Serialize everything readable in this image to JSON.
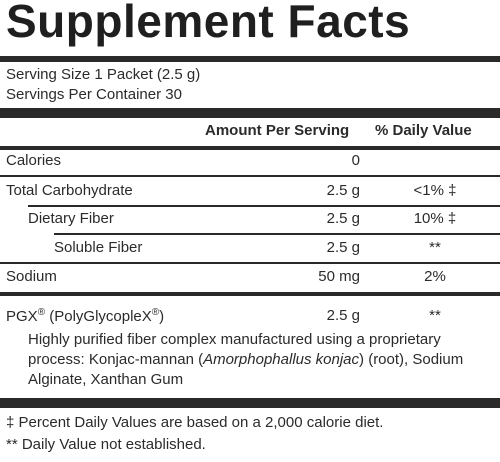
{
  "title": "Supplement Facts",
  "serving_size": "Serving Size 1 Packet (2.5 g)",
  "servings_per_container": "Servings Per Container 30",
  "headers": {
    "amount": "Amount Per Serving",
    "daily_value": "% Daily Value"
  },
  "rows": [
    {
      "name": "Calories",
      "amount": "0",
      "dv": ""
    },
    {
      "name": "Total Carbohydrate",
      "amount": "2.5 g",
      "dv": "<1% ‡"
    },
    {
      "name": "Dietary Fiber",
      "amount": "2.5 g",
      "dv": "10% ‡"
    },
    {
      "name": "Soluble Fiber",
      "amount": "2.5 g",
      "dv": "**"
    },
    {
      "name": "Sodium",
      "amount": "50 mg",
      "dv": "2%"
    }
  ],
  "pgx": {
    "name_prefix": "PGX",
    "name_mid": " (PolyGlycopleX",
    "name_suffix": ")",
    "registered": "®",
    "amount": "2.5 g",
    "dv": "**",
    "desc_1": "Highly purified fiber complex manufactured using a proprietary process: Konjac-mannan (",
    "desc_italic": "Amorphophallus konjac",
    "desc_2": ") (root), Sodium Alginate, Xanthan Gum"
  },
  "footnotes": [
    "‡  Percent Daily Values are based on a 2,000 calorie diet.",
    "** Daily Value not established."
  ]
}
